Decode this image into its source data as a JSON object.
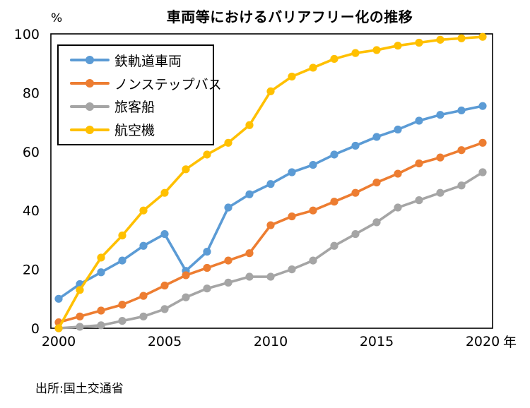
{
  "title": "車両等におけるバリアフリー化の推移",
  "y_unit_label": "%",
  "x_unit_label": "年",
  "source": "出所:国土交通省",
  "colors": {
    "railway": "#5B9BD5",
    "bus": "#ED7D31",
    "ship": "#A5A5A5",
    "aircraft": "#FFC000",
    "axis": "#000000",
    "text": "#000000",
    "background": "#FFFFFF"
  },
  "chart_data": {
    "type": "line",
    "title": "車両等におけるバリアフリー化の推移",
    "xlabel": "年",
    "ylabel": "%",
    "xlim": [
      2000,
      2020
    ],
    "ylim": [
      0,
      100
    ],
    "grid": false,
    "legend_position": "top-left",
    "x_ticks": [
      2000,
      2005,
      2010,
      2015,
      2020
    ],
    "y_ticks": [
      0,
      20,
      40,
      60,
      80,
      100
    ],
    "x": [
      2000,
      2001,
      2002,
      2003,
      2004,
      2005,
      2006,
      2007,
      2008,
      2009,
      2010,
      2011,
      2012,
      2013,
      2014,
      2015,
      2016,
      2017,
      2018,
      2019,
      2020
    ],
    "series": [
      {
        "name": "鉄軌道車両",
        "color": "#5B9BD5",
        "values": [
          10,
          15,
          19,
          23,
          28,
          32,
          19.5,
          26,
          41,
          45.5,
          49,
          53,
          55.5,
          59,
          62,
          65,
          67.5,
          70.5,
          72.5,
          74,
          75.5
        ]
      },
      {
        "name": "ノンステップバス",
        "color": "#ED7D31",
        "values": [
          2,
          4,
          6,
          8,
          11,
          14.5,
          18,
          20.5,
          23,
          25.5,
          35,
          38,
          40,
          43,
          46,
          49.5,
          52.5,
          56,
          58,
          60.5,
          63
        ]
      },
      {
        "name": "旅客船",
        "color": "#A5A5A5",
        "values": [
          0,
          0.5,
          1,
          2.5,
          4,
          6.5,
          10.5,
          13.5,
          15.5,
          17.5,
          17.5,
          20,
          23,
          28,
          32,
          36,
          41,
          43.5,
          46,
          48.5,
          53
        ]
      },
      {
        "name": "航空機",
        "color": "#FFC000",
        "values": [
          0,
          13,
          24,
          31.5,
          40,
          46,
          54,
          59,
          63,
          69,
          80.5,
          85.5,
          88.5,
          91.5,
          93.5,
          94.5,
          96,
          97,
          98,
          98.5,
          99
        ]
      }
    ]
  }
}
